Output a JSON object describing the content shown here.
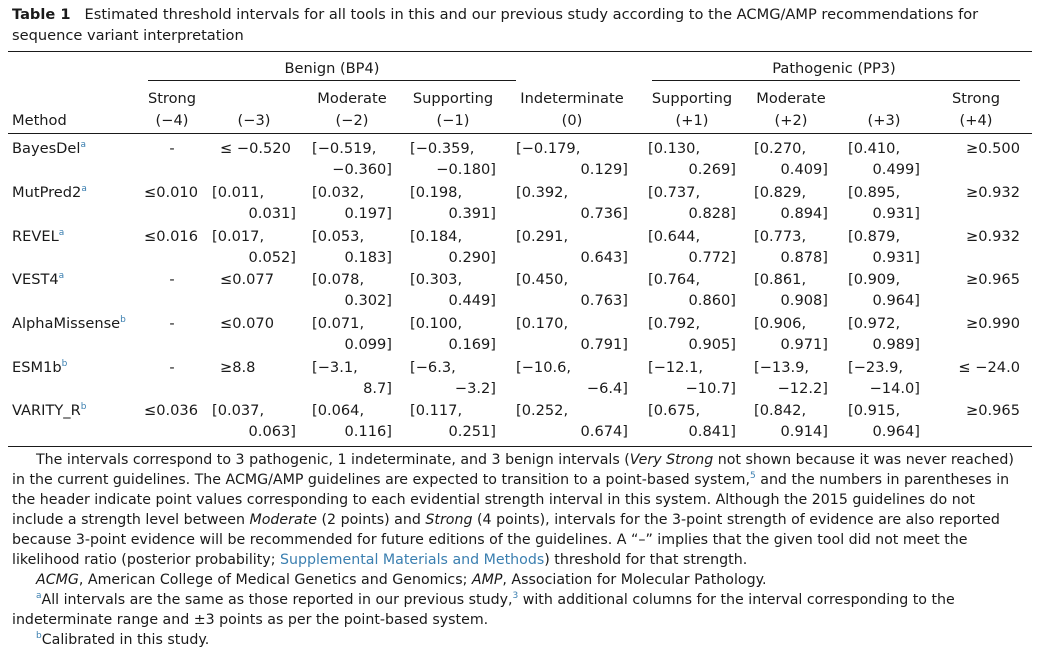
{
  "caption": {
    "label": "Table 1",
    "text": "Estimated threshold intervals for all tools in this and our previous study according to the ACMG/AMP recommendations for sequence variant interpretation"
  },
  "groups": {
    "benign": "Benign (BP4)",
    "pathogenic": "Pathogenic (PP3)"
  },
  "columns": [
    {
      "name": "Strong",
      "points": "(−4)"
    },
    {
      "name": "",
      "points": "(−3)"
    },
    {
      "name": "Moderate",
      "points": "(−2)"
    },
    {
      "name": "Supporting",
      "points": "(−1)"
    },
    {
      "name": "Indeterminate",
      "points": "(0)"
    },
    {
      "name": "Supporting",
      "points": "(+1)"
    },
    {
      "name": "Moderate",
      "points": "(+2)"
    },
    {
      "name": "",
      "points": "(+3)"
    },
    {
      "name": "Strong",
      "points": "(+4)"
    }
  ],
  "method_header": "Method",
  "rows": [
    {
      "method": "BayesDel",
      "sup": "a",
      "cells": [
        [
          "-"
        ],
        [
          "≤ −0.520"
        ],
        [
          "[−0.519,",
          "−0.360]"
        ],
        [
          "[−0.359,",
          "−0.180]"
        ],
        [
          "[−0.179,",
          "0.129]"
        ],
        [
          "[0.130,",
          "0.269]"
        ],
        [
          "[0.270,",
          "0.409]"
        ],
        [
          "[0.410,",
          "0.499]"
        ],
        [
          "≥0.500"
        ]
      ]
    },
    {
      "method": "MutPred2",
      "sup": "a",
      "cells": [
        [
          "≤0.010"
        ],
        [
          "[0.011,",
          "0.031]"
        ],
        [
          "[0.032,",
          "0.197]"
        ],
        [
          "[0.198,",
          "0.391]"
        ],
        [
          "[0.392,",
          "0.736]"
        ],
        [
          "[0.737,",
          "0.828]"
        ],
        [
          "[0.829,",
          "0.894]"
        ],
        [
          "[0.895,",
          "0.931]"
        ],
        [
          "≥0.932"
        ]
      ]
    },
    {
      "method": "REVEL",
      "sup": "a",
      "cells": [
        [
          "≤0.016"
        ],
        [
          "[0.017,",
          "0.052]"
        ],
        [
          "[0.053,",
          "0.183]"
        ],
        [
          "[0.184,",
          "0.290]"
        ],
        [
          "[0.291,",
          "0.643]"
        ],
        [
          "[0.644,",
          "0.772]"
        ],
        [
          "[0.773,",
          "0.878]"
        ],
        [
          "[0.879,",
          "0.931]"
        ],
        [
          "≥0.932"
        ]
      ]
    },
    {
      "method": "VEST4",
      "sup": "a",
      "cells": [
        [
          "-"
        ],
        [
          "≤0.077"
        ],
        [
          "[0.078,",
          "0.302]"
        ],
        [
          "[0.303,",
          "0.449]"
        ],
        [
          "[0.450,",
          "0.763]"
        ],
        [
          "[0.764,",
          "0.860]"
        ],
        [
          "[0.861,",
          "0.908]"
        ],
        [
          "[0.909,",
          "0.964]"
        ],
        [
          "≥0.965"
        ]
      ]
    },
    {
      "method": "AlphaMissense",
      "sup": "b",
      "cells": [
        [
          "-"
        ],
        [
          "≤0.070"
        ],
        [
          "[0.071,",
          "0.099]"
        ],
        [
          "[0.100,",
          "0.169]"
        ],
        [
          "[0.170,",
          "0.791]"
        ],
        [
          "[0.792,",
          "0.905]"
        ],
        [
          "[0.906,",
          "0.971]"
        ],
        [
          "[0.972,",
          "0.989]"
        ],
        [
          "≥0.990"
        ]
      ]
    },
    {
      "method": "ESM1b",
      "sup": "b",
      "cells": [
        [
          "-"
        ],
        [
          "≥8.8"
        ],
        [
          "[−3.1,",
          "8.7]"
        ],
        [
          "[−6.3,",
          "−3.2]"
        ],
        [
          "[−10.6,",
          "−6.4]"
        ],
        [
          "[−12.1,",
          "−10.7]"
        ],
        [
          "[−13.9,",
          "−12.2]"
        ],
        [
          "[−23.9,",
          "−14.0]"
        ],
        [
          "≤ −24.0"
        ]
      ]
    },
    {
      "method": "VARITY_R",
      "sup": "b",
      "cells": [
        [
          "≤0.036"
        ],
        [
          "[0.037,",
          "0.063]"
        ],
        [
          "[0.064,",
          "0.116]"
        ],
        [
          "[0.117,",
          "0.251]"
        ],
        [
          "[0.252,",
          "0.674]"
        ],
        [
          "[0.675,",
          "0.841]"
        ],
        [
          "[0.842,",
          "0.914]"
        ],
        [
          "[0.915,",
          "0.964]"
        ],
        [
          "≥0.965"
        ]
      ]
    }
  ],
  "notes": {
    "p1_a": "The intervals correspond to 3 pathogenic, 1 indeterminate, and 3 benign intervals (",
    "p1_italic1": "Very Strong",
    "p1_b": " not shown because it was never reached) in the current guidelines. The ACMG/AMP guidelines are expected to transition to a point-based system,",
    "p1_ref": "5",
    "p1_c": " and the numbers in parentheses in the header indicate point values corresponding to each evidential strength interval in this system. Although the 2015 guidelines do not include a strength level between ",
    "p1_italic2": "Moderate",
    "p1_d": " (2 points) and ",
    "p1_italic3": "Strong",
    "p1_e": " (4 points), intervals for the 3-point strength of evidence are also reported because 3-point evidence will be recommended for future editions of the guidelines. A “–” implies that the given tool did not meet the likelihood ratio (posterior probability; ",
    "p1_link": "Supplemental Materials and Methods",
    "p1_f": ") threshold for that strength.",
    "abbr1": "ACMG",
    "abbr1_text": ", American College of Medical Genetics and Genomics; ",
    "abbr2": "AMP",
    "abbr2_text": ", Association for Molecular Pathology.",
    "fa_sup": "a",
    "fa_text_a": "All intervals are the same as those reported in our previous study,",
    "fa_ref": "3",
    "fa_text_b": " with additional columns for the interval corresponding to the indeterminate range and ±3 points as per the point-based system.",
    "fb_sup": "b",
    "fb_text": "Calibrated in this study."
  }
}
